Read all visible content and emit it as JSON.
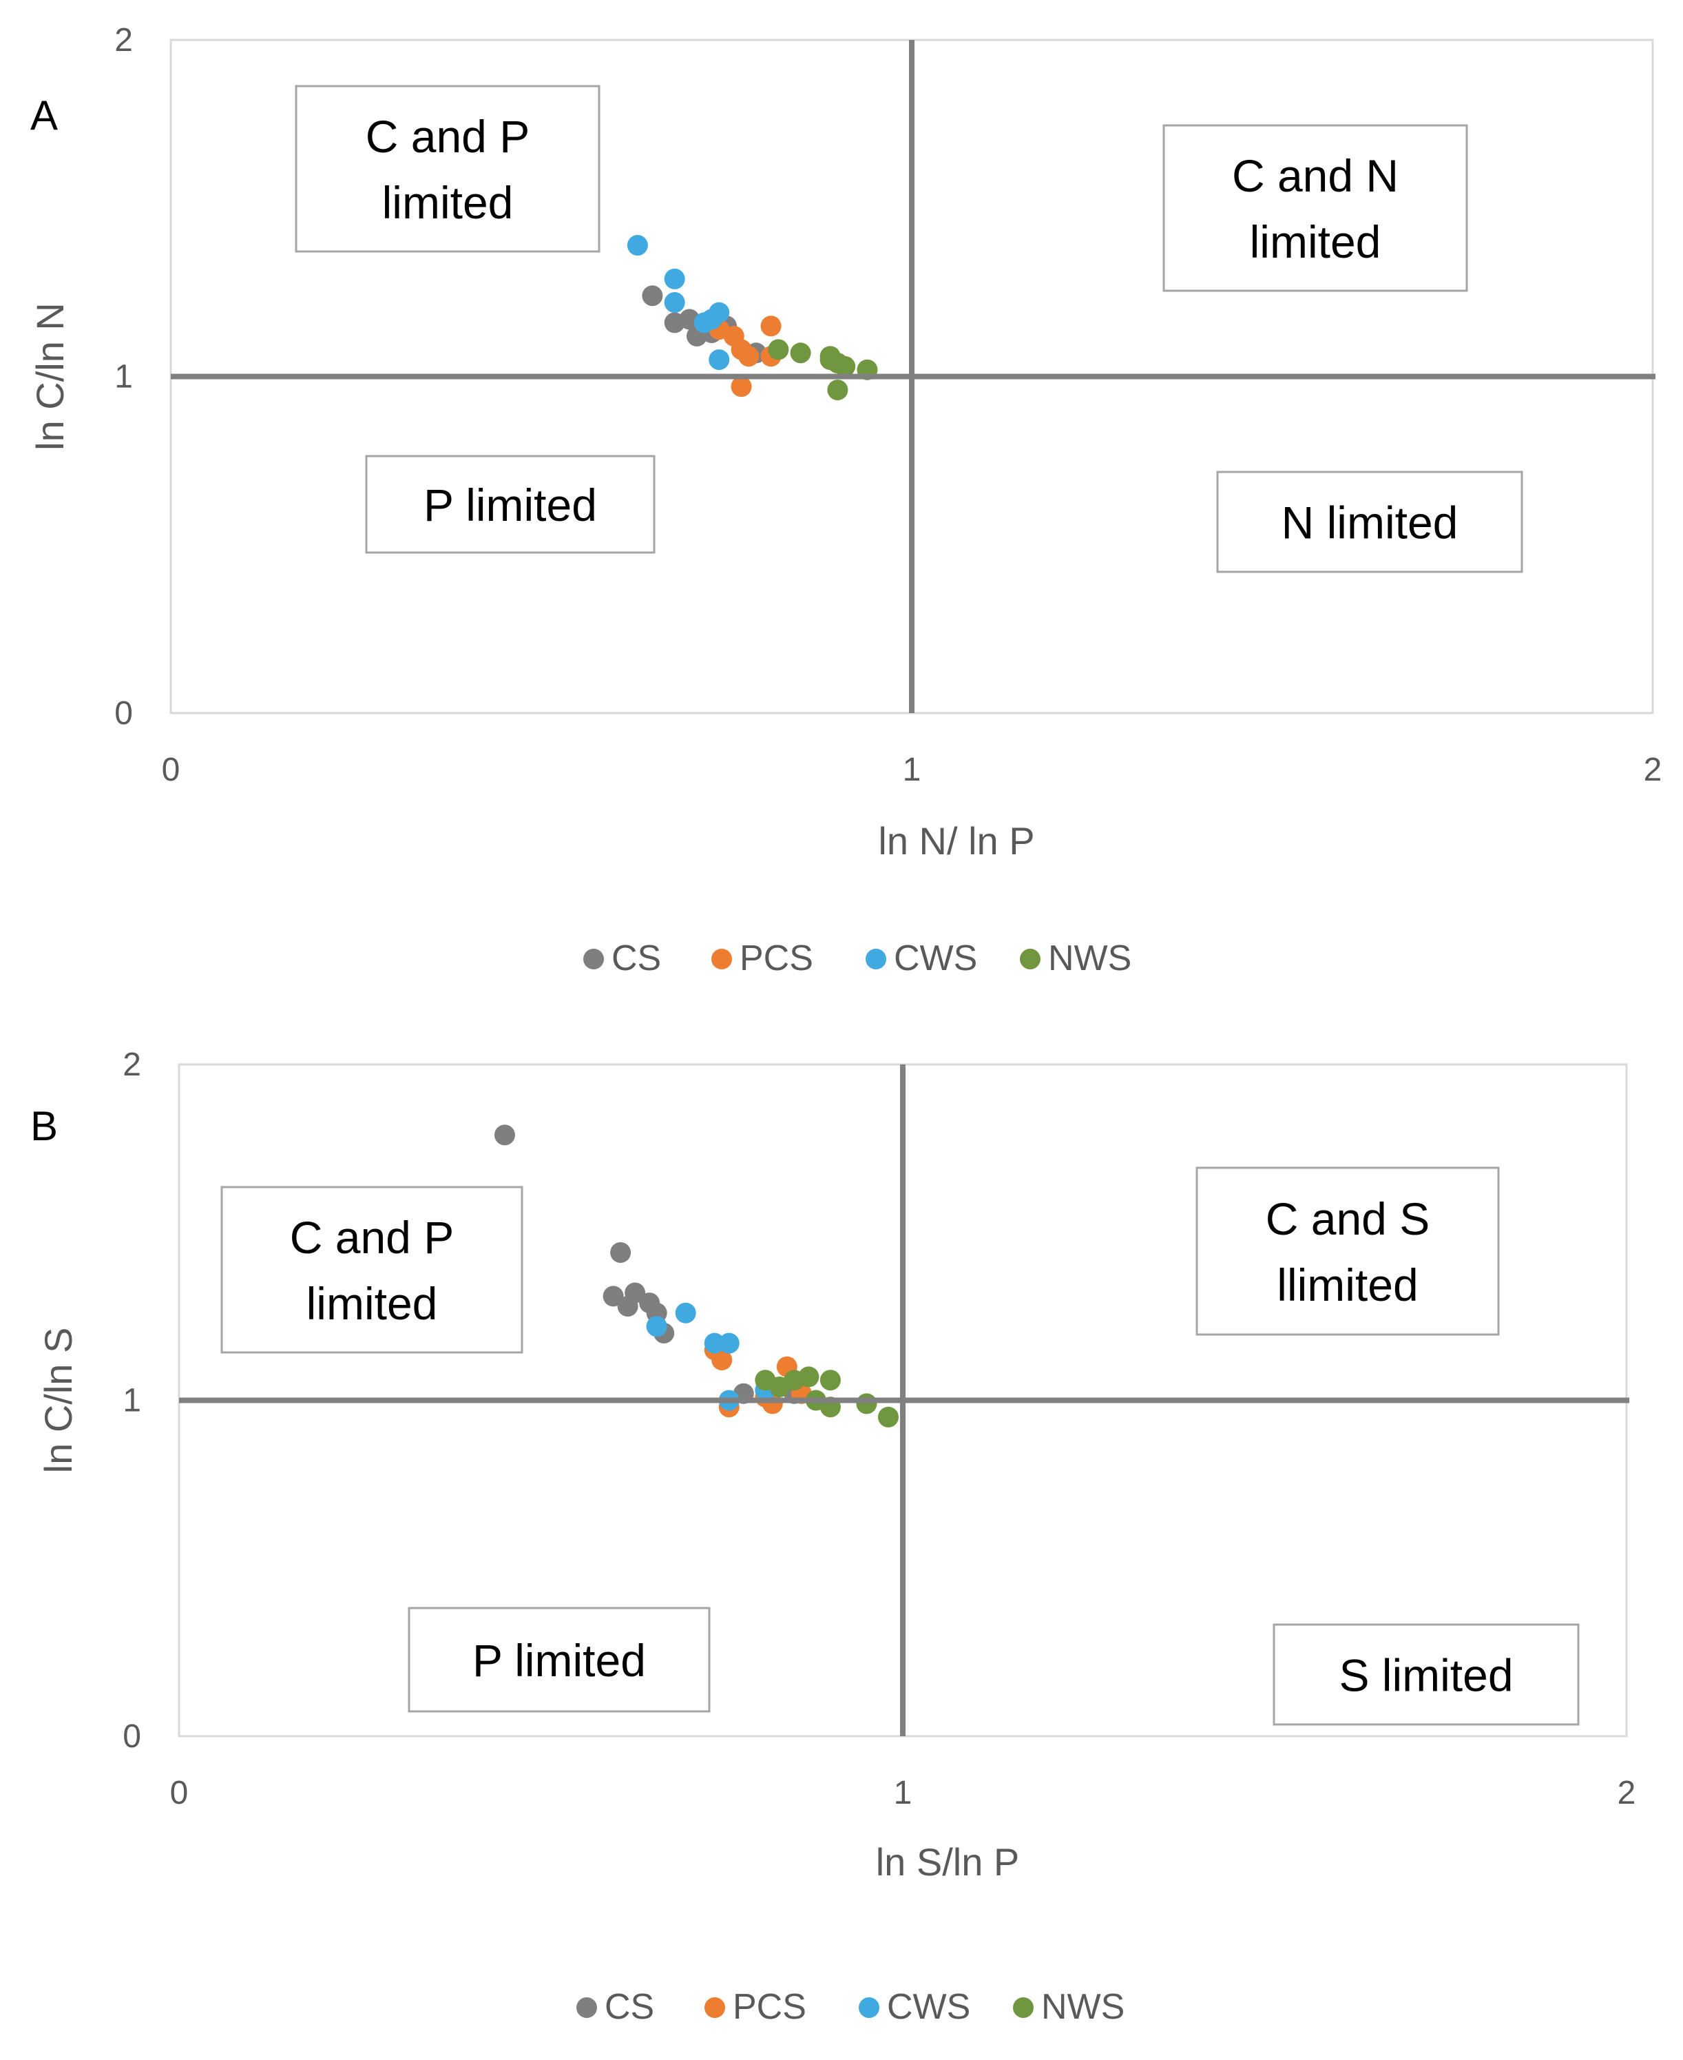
{
  "chart_data": [
    {
      "type": "scatter",
      "panel_label": "A",
      "xlabel": "ln N/ ln P",
      "ylabel": "ln C/ln N",
      "xlim": [
        0,
        2
      ],
      "ylim": [
        0,
        2
      ],
      "x_ticks": [
        "0",
        "1",
        "2"
      ],
      "y_ticks": [
        "0",
        "1",
        "2"
      ],
      "threshold_x": 1,
      "threshold_y": 1,
      "regions": [
        {
          "lines": [
            "C and P",
            "limited"
          ],
          "position": "top-left"
        },
        {
          "lines": [
            "C and N",
            "limited"
          ],
          "position": "top-right"
        },
        {
          "lines": [
            "P limited"
          ],
          "position": "bottom-left"
        },
        {
          "lines": [
            "N limited"
          ],
          "position": "bottom-right"
        }
      ],
      "legend": [
        {
          "name": "CS",
          "color": "#7f7f7f"
        },
        {
          "name": "PCS",
          "color": "#ed7d31"
        },
        {
          "name": "CWS",
          "color": "#3fa9e0"
        },
        {
          "name": "NWS",
          "color": "#70963f"
        }
      ],
      "series": [
        {
          "name": "CS",
          "color": "#7f7f7f",
          "points": [
            [
              0.65,
              1.24
            ],
            [
              0.68,
              1.16
            ],
            [
              0.71,
              1.12
            ],
            [
              0.73,
              1.13
            ],
            [
              0.75,
              1.15
            ],
            [
              0.79,
              1.07
            ],
            [
              0.7,
              1.17
            ]
          ]
        },
        {
          "name": "PCS",
          "color": "#ed7d31",
          "points": [
            [
              0.81,
              1.15
            ],
            [
              0.77,
              1.08
            ],
            [
              0.78,
              1.06
            ],
            [
              0.77,
              0.97
            ],
            [
              0.81,
              1.06
            ],
            [
              0.74,
              1.14
            ],
            [
              0.76,
              1.12
            ]
          ]
        },
        {
          "name": "CWS",
          "color": "#3fa9e0",
          "points": [
            [
              0.63,
              1.39
            ],
            [
              0.68,
              1.29
            ],
            [
              0.68,
              1.22
            ],
            [
              0.74,
              1.19
            ],
            [
              0.73,
              1.17
            ],
            [
              0.72,
              1.16
            ],
            [
              0.74,
              1.05
            ]
          ]
        },
        {
          "name": "NWS",
          "color": "#70963f",
          "points": [
            [
              0.82,
              1.08
            ],
            [
              0.85,
              1.07
            ],
            [
              0.89,
              1.05
            ],
            [
              0.9,
              1.04
            ],
            [
              0.91,
              1.03
            ],
            [
              0.94,
              1.02
            ],
            [
              0.9,
              0.96
            ],
            [
              0.89,
              1.06
            ]
          ]
        }
      ]
    },
    {
      "type": "scatter",
      "panel_label": "B",
      "xlabel": "ln S/ln P",
      "ylabel": "ln C/ln S",
      "xlim": [
        0,
        2
      ],
      "ylim": [
        0,
        2
      ],
      "x_ticks": [
        "0",
        "1",
        "2"
      ],
      "y_ticks": [
        "0",
        "1",
        "2"
      ],
      "threshold_x": 1,
      "threshold_y": 1,
      "regions": [
        {
          "lines": [
            "C and P",
            "limited"
          ],
          "position": "top-left"
        },
        {
          "lines": [
            "C and S",
            "llimited"
          ],
          "position": "top-right"
        },
        {
          "lines": [
            "P limited"
          ],
          "position": "bottom-left"
        },
        {
          "lines": [
            "S limited"
          ],
          "position": "bottom-right"
        }
      ],
      "legend": [
        {
          "name": "CS",
          "color": "#7f7f7f"
        },
        {
          "name": "PCS",
          "color": "#ed7d31"
        },
        {
          "name": "CWS",
          "color": "#3fa9e0"
        },
        {
          "name": "NWS",
          "color": "#70963f"
        }
      ],
      "series": [
        {
          "name": "CS",
          "color": "#7f7f7f",
          "points": [
            [
              0.45,
              1.79
            ],
            [
              0.61,
              1.44
            ],
            [
              0.6,
              1.31
            ],
            [
              0.63,
              1.32
            ],
            [
              0.62,
              1.28
            ],
            [
              0.65,
              1.29
            ],
            [
              0.66,
              1.26
            ],
            [
              0.66,
              1.22
            ],
            [
              0.67,
              1.2
            ],
            [
              0.78,
              1.02
            ],
            [
              0.85,
              1.02
            ]
          ]
        },
        {
          "name": "PCS",
          "color": "#ed7d31",
          "points": [
            [
              0.74,
              1.15
            ],
            [
              0.75,
              1.12
            ],
            [
              0.84,
              1.1
            ],
            [
              0.76,
              0.98
            ],
            [
              0.81,
              1.01
            ],
            [
              0.82,
              1.04
            ],
            [
              0.86,
              1.02
            ],
            [
              0.82,
              0.99
            ]
          ]
        },
        {
          "name": "CWS",
          "color": "#3fa9e0",
          "points": [
            [
              0.66,
              1.22
            ],
            [
              0.7,
              1.26
            ],
            [
              0.74,
              1.17
            ],
            [
              0.76,
              1.17
            ],
            [
              0.76,
              1.0
            ],
            [
              0.81,
              1.03
            ]
          ]
        },
        {
          "name": "NWS",
          "color": "#70963f",
          "points": [
            [
              0.81,
              1.06
            ],
            [
              0.85,
              1.06
            ],
            [
              0.87,
              1.07
            ],
            [
              0.9,
              1.06
            ],
            [
              0.88,
              1.0
            ],
            [
              0.9,
              0.98
            ],
            [
              0.95,
              0.99
            ],
            [
              0.98,
              0.95
            ],
            [
              0.83,
              1.04
            ]
          ]
        }
      ]
    }
  ]
}
